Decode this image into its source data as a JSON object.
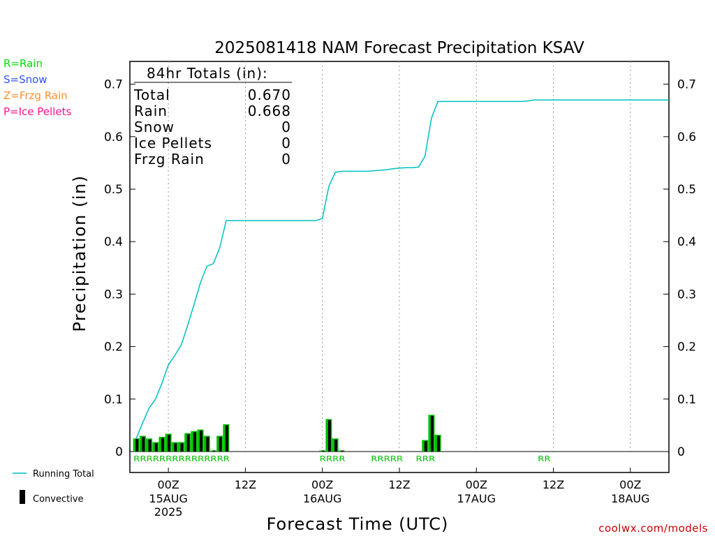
{
  "chart_data": {
    "type": "bar",
    "title": "2025081418 NAM Forecast Precipitation KSAV",
    "xlabel": "Forecast Time (UTC)",
    "ylabel": "Precipitation (in)",
    "ylim": [
      0,
      0.72
    ],
    "yticks": [
      0,
      0.1,
      0.2,
      0.3,
      0.4,
      0.5,
      0.6,
      0.7
    ],
    "xlim_hours": [
      0,
      84
    ],
    "grid": "vertical dotted at 00Z and 12Z",
    "xticks": [
      {
        "label": "00Z",
        "sub": "15AUG",
        "sub2": "2025",
        "hour": 6
      },
      {
        "label": "12Z",
        "sub": "",
        "sub2": "",
        "hour": 18
      },
      {
        "label": "00Z",
        "sub": "16AUG",
        "sub2": "",
        "hour": 30
      },
      {
        "label": "12Z",
        "sub": "",
        "sub2": "",
        "hour": 42
      },
      {
        "label": "00Z",
        "sub": "17AUG",
        "sub2": "",
        "hour": 54
      },
      {
        "label": "12Z",
        "sub": "",
        "sub2": "",
        "hour": 66
      },
      {
        "label": "00Z",
        "sub": "18AUG",
        "sub2": "",
        "hour": 78
      }
    ],
    "series": [
      {
        "name": "Running Total",
        "type": "line",
        "color": "#00c0c0",
        "points": [
          [
            1,
            0.025
          ],
          [
            2,
            0.055
          ],
          [
            3,
            0.083
          ],
          [
            4,
            0.1
          ],
          [
            5,
            0.13
          ],
          [
            6,
            0.165
          ],
          [
            7,
            0.183
          ],
          [
            8,
            0.203
          ],
          [
            9,
            0.24
          ],
          [
            10,
            0.28
          ],
          [
            11,
            0.322
          ],
          [
            12,
            0.353
          ],
          [
            13,
            0.358
          ],
          [
            14,
            0.388
          ],
          [
            15,
            0.44
          ],
          [
            16,
            0.44
          ],
          [
            17,
            0.44
          ],
          [
            18,
            0.44
          ],
          [
            19,
            0.44
          ],
          [
            20,
            0.44
          ],
          [
            21,
            0.44
          ],
          [
            22,
            0.44
          ],
          [
            23,
            0.44
          ],
          [
            24,
            0.44
          ],
          [
            25,
            0.44
          ],
          [
            26,
            0.44
          ],
          [
            27,
            0.44
          ],
          [
            28,
            0.44
          ],
          [
            29,
            0.44
          ],
          [
            30,
            0.444
          ],
          [
            31,
            0.505
          ],
          [
            32,
            0.532
          ],
          [
            33,
            0.534
          ],
          [
            34,
            0.534
          ],
          [
            35,
            0.534
          ],
          [
            36,
            0.534
          ],
          [
            37,
            0.534
          ],
          [
            38,
            0.535
          ],
          [
            39,
            0.536
          ],
          [
            40,
            0.537
          ],
          [
            41,
            0.539
          ],
          [
            42,
            0.54
          ],
          [
            43,
            0.541
          ],
          [
            44,
            0.541
          ],
          [
            45,
            0.542
          ],
          [
            46,
            0.563
          ],
          [
            47,
            0.635
          ],
          [
            48,
            0.667
          ],
          [
            49,
            0.667
          ],
          [
            50,
            0.667
          ],
          [
            51,
            0.667
          ],
          [
            52,
            0.667
          ],
          [
            53,
            0.667
          ],
          [
            54,
            0.667
          ],
          [
            55,
            0.667
          ],
          [
            56,
            0.667
          ],
          [
            57,
            0.667
          ],
          [
            58,
            0.667
          ],
          [
            59,
            0.667
          ],
          [
            60,
            0.667
          ],
          [
            61,
            0.667
          ],
          [
            62,
            0.668
          ],
          [
            63,
            0.67
          ],
          [
            64,
            0.67
          ],
          [
            65,
            0.67
          ],
          [
            66,
            0.67
          ],
          [
            67,
            0.67
          ],
          [
            68,
            0.67
          ],
          [
            69,
            0.67
          ],
          [
            70,
            0.67
          ],
          [
            71,
            0.67
          ],
          [
            72,
            0.67
          ],
          [
            73,
            0.67
          ],
          [
            74,
            0.67
          ],
          [
            75,
            0.67
          ],
          [
            76,
            0.67
          ],
          [
            77,
            0.67
          ],
          [
            78,
            0.67
          ],
          [
            79,
            0.67
          ],
          [
            80,
            0.67
          ],
          [
            81,
            0.67
          ],
          [
            82,
            0.67
          ],
          [
            83,
            0.67
          ],
          [
            84,
            0.67
          ]
        ]
      },
      {
        "name": "Rain",
        "type": "bar",
        "color": "#00c000",
        "hours": [
          1,
          2,
          3,
          4,
          5,
          6,
          7,
          8,
          9,
          10,
          11,
          12,
          13,
          14,
          15,
          30,
          31,
          32,
          33,
          46,
          47,
          48
        ],
        "values": [
          0.025,
          0.03,
          0.025,
          0.018,
          0.028,
          0.034,
          0.018,
          0.018,
          0.035,
          0.039,
          0.042,
          0.03,
          0.002,
          0.03,
          0.052,
          0.002,
          0.062,
          0.025,
          0.002,
          0.022,
          0.07,
          0.032
        ]
      },
      {
        "name": "Convective",
        "type": "bar",
        "color": "#000000",
        "hours": [
          1,
          2,
          3,
          4,
          5,
          6,
          7,
          8,
          9,
          10,
          11,
          12,
          13,
          14,
          15,
          30,
          31,
          32,
          33,
          46,
          47,
          48
        ],
        "values": [
          0.024,
          0.028,
          0.023,
          0.016,
          0.026,
          0.032,
          0.016,
          0.016,
          0.033,
          0.037,
          0.04,
          0.028,
          0.002,
          0.028,
          0.05,
          0.002,
          0.06,
          0.023,
          0.002,
          0.02,
          0.068,
          0.03
        ]
      }
    ],
    "precip_type_labels": [
      {
        "text": "RRRRRRRRRRRRRRR",
        "start_hour": 1
      },
      {
        "text": "RRRR",
        "start_hour": 30
      },
      {
        "text": "RRRRR",
        "start_hour": 38
      },
      {
        "text": "RRR",
        "start_hour": 45
      },
      {
        "text": "RR",
        "start_hour": 64
      }
    ],
    "totals_box": {
      "heading": "84hr Totals (in):",
      "rows": [
        {
          "label": "Total",
          "value": "0.670"
        },
        {
          "label": "Rain",
          "value": "0.668"
        },
        {
          "label": "Snow",
          "value": "0"
        },
        {
          "label": "Ice Pellets",
          "value": "0"
        },
        {
          "label": "Frzg Rain",
          "value": "0"
        }
      ]
    },
    "type_legend": [
      {
        "text": "R=Rain",
        "color": "#00dd00"
      },
      {
        "text": "S=Snow",
        "color": "#3050ff"
      },
      {
        "text": "Z=Frzg Rain",
        "color": "#ff9030"
      },
      {
        "text": "P=Ice Pellets",
        "color": "#ff1090"
      }
    ],
    "bottom_legend": [
      {
        "text": "Running Total",
        "kind": "line",
        "color": "#00c0c0"
      },
      {
        "text": "Convective",
        "kind": "bar",
        "color": "#000000"
      }
    ],
    "credit": "coolwx.com/models"
  }
}
